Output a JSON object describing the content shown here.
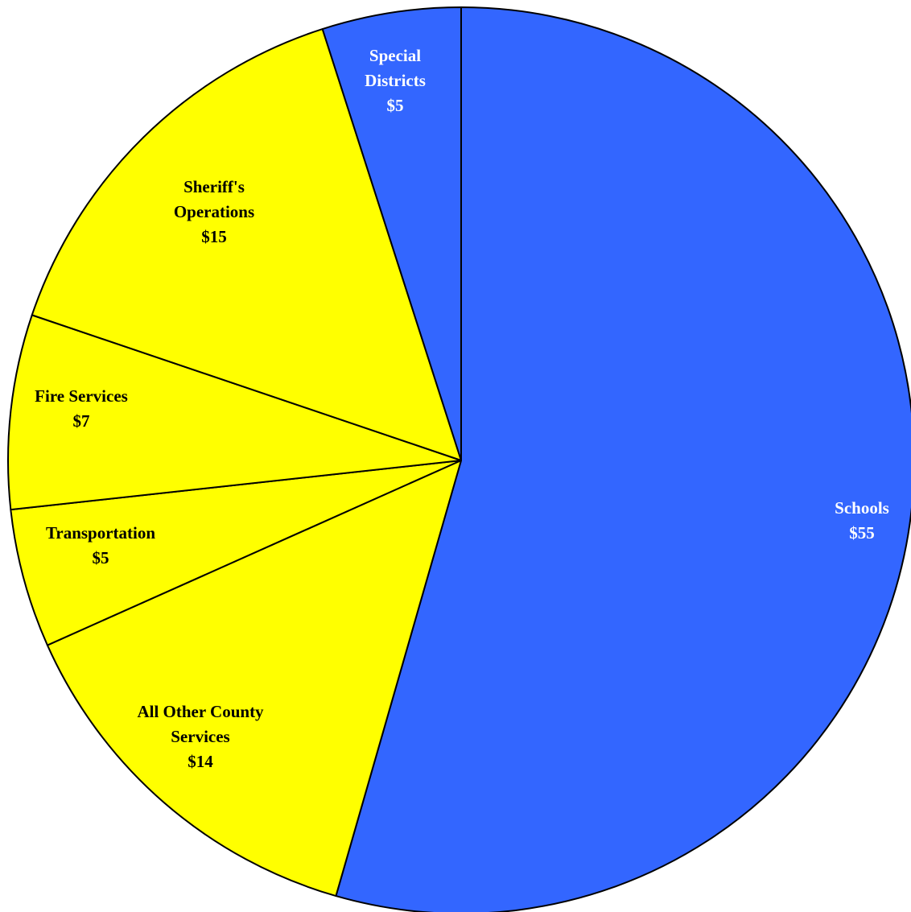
{
  "chart_data": {
    "type": "pie",
    "title": "",
    "start_angle_deg": 0,
    "direction": "clockwise",
    "slices": [
      {
        "label_lines": [
          "Schools"
        ],
        "value_label": "$55",
        "value": 55,
        "color": "#3366ff",
        "text_color": "#ffffff"
      },
      {
        "label_lines": [
          "All Other County",
          "Services"
        ],
        "value_label": "$14",
        "value": 14,
        "color": "#ffff00",
        "text_color": "#000000"
      },
      {
        "label_lines": [
          "Transportation"
        ],
        "value_label": "$5",
        "value": 5,
        "color": "#ffff00",
        "text_color": "#000000"
      },
      {
        "label_lines": [
          "Fire Services"
        ],
        "value_label": "$7",
        "value": 7,
        "color": "#ffff00",
        "text_color": "#000000"
      },
      {
        "label_lines": [
          "Sheriff's",
          "Operations"
        ],
        "value_label": "$15",
        "value": 15,
        "color": "#ffff00",
        "text_color": "#000000"
      },
      {
        "label_lines": [
          "Special",
          "Districts"
        ],
        "value_label": "$5",
        "value": 5,
        "color": "#3366ff",
        "text_color": "#ffffff"
      }
    ]
  }
}
